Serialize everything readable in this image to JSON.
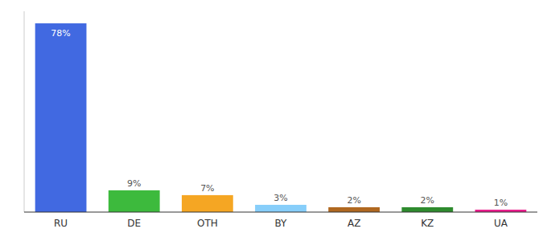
{
  "chart_data": {
    "type": "bar",
    "categories": [
      "RU",
      "DE",
      "OTH",
      "BY",
      "AZ",
      "KZ",
      "UA"
    ],
    "values": [
      78,
      9,
      7,
      3,
      2,
      2,
      1
    ],
    "value_labels": [
      "78%",
      "9%",
      "7%",
      "3%",
      "2%",
      "2%",
      "1%"
    ],
    "colors": [
      "#4169e1",
      "#3dba3d",
      "#f5a623",
      "#87cefa",
      "#b06820",
      "#2e8b2e",
      "#e91e8c"
    ],
    "ylim": [
      0,
      83
    ],
    "data_labels": true,
    "tick_labels": "x",
    "grid": false
  }
}
